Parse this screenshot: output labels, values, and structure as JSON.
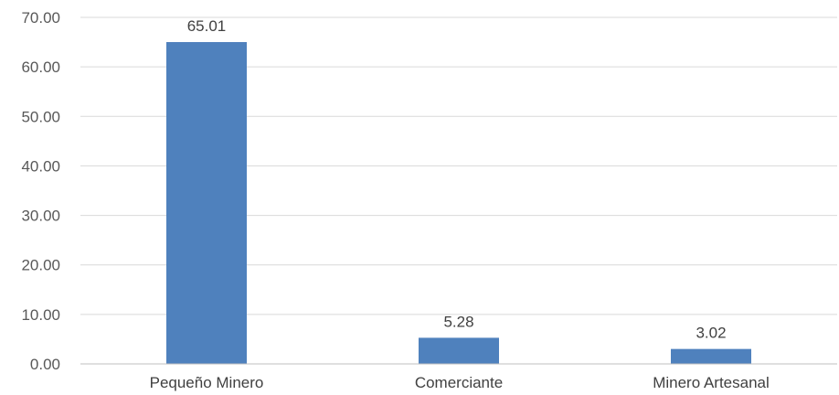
{
  "chart_data": {
    "type": "bar",
    "categories": [
      "Pequeño Minero",
      "Comerciante",
      "Minero Artesanal"
    ],
    "values": [
      65.01,
      5.28,
      3.02
    ],
    "data_labels": [
      "65.01",
      "5.28",
      "3.02"
    ],
    "y_ticks": [
      "0.00",
      "10.00",
      "20.00",
      "30.00",
      "40.00",
      "50.00",
      "60.00",
      "70.00"
    ],
    "ylim": [
      0,
      70
    ],
    "grid": true,
    "title": "",
    "xlabel": "",
    "ylabel": "",
    "colors": {
      "bar": "#4f81bd",
      "grid": "#d9d9d9",
      "axis": "#bfbfbf"
    }
  }
}
